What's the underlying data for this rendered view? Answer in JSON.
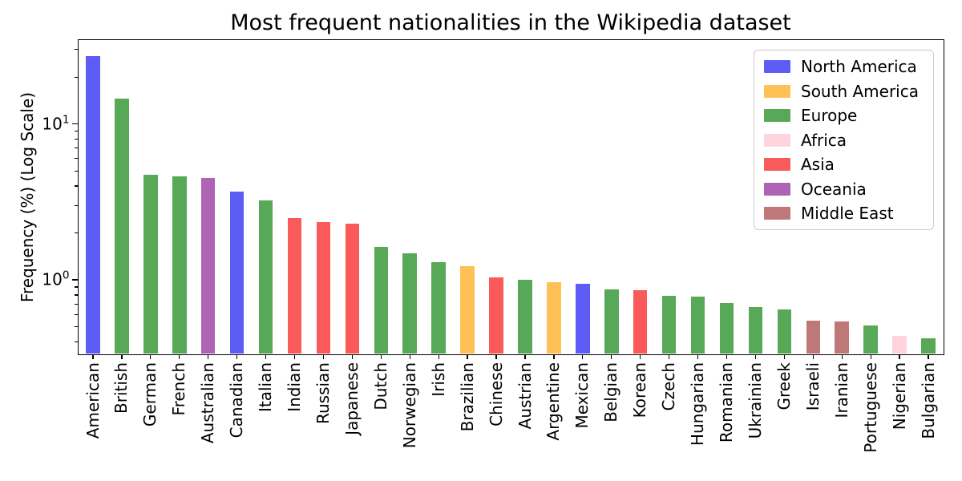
{
  "chart_data": {
    "type": "bar",
    "title": "Most frequent nationalities in the Wikipedia dataset",
    "xlabel": "",
    "ylabel": "Frequency (%) (Log Scale)",
    "yscale": "log",
    "ylim": [
      0.337,
      34.5
    ],
    "grid": false,
    "legend_position": "upper right",
    "categories": [
      "American",
      "British",
      "German",
      "French",
      "Australian",
      "Canadian",
      "Italian",
      "Indian",
      "Russian",
      "Japanese",
      "Dutch",
      "Norwegian",
      "Irish",
      "Brazilian",
      "Chinese",
      "Austrian",
      "Argentine",
      "Mexican",
      "Belgian",
      "Korean",
      "Czech",
      "Hungarian",
      "Romanian",
      "Ukrainian",
      "Greek",
      "Israeli",
      "Iranian",
      "Portuguese",
      "Nigerian",
      "Bulgarian"
    ],
    "values": [
      27.4,
      14.5,
      4.75,
      4.6,
      4.5,
      3.7,
      3.25,
      2.5,
      2.35,
      2.3,
      1.62,
      1.48,
      1.3,
      1.22,
      1.04,
      1.0,
      0.97,
      0.94,
      0.87,
      0.86,
      0.79,
      0.78,
      0.71,
      0.67,
      0.65,
      0.55,
      0.54,
      0.51,
      0.44,
      0.42
    ],
    "groups": [
      "North America",
      "Europe",
      "Europe",
      "Europe",
      "Oceania",
      "North America",
      "Europe",
      "Asia",
      "Asia",
      "Asia",
      "Europe",
      "Europe",
      "Europe",
      "South America",
      "Asia",
      "Europe",
      "South America",
      "North America",
      "Europe",
      "Asia",
      "Europe",
      "Europe",
      "Europe",
      "Europe",
      "Europe",
      "Middle East",
      "Middle East",
      "Europe",
      "Africa",
      "Europe"
    ],
    "legend": [
      {
        "label": "North America",
        "color": "#5D5DF6"
      },
      {
        "label": "South America",
        "color": "#FFC155"
      },
      {
        "label": "Europe",
        "color": "#57A857"
      },
      {
        "label": "Africa",
        "color": "#FFD3DC"
      },
      {
        "label": "Asia",
        "color": "#FA5A5A"
      },
      {
        "label": "Oceania",
        "color": "#AE63B4"
      },
      {
        "label": "Middle East",
        "color": "#BE7878"
      }
    ],
    "y_ticks_major": [
      {
        "value": 10,
        "base": "10",
        "exp": "1"
      },
      {
        "value": 1,
        "base": "10",
        "exp": "0"
      }
    ],
    "y_ticks_minor": [
      30,
      20,
      9,
      8,
      7,
      6,
      5,
      4,
      3,
      2,
      0.9,
      0.8,
      0.7,
      0.6,
      0.5,
      0.4
    ]
  }
}
